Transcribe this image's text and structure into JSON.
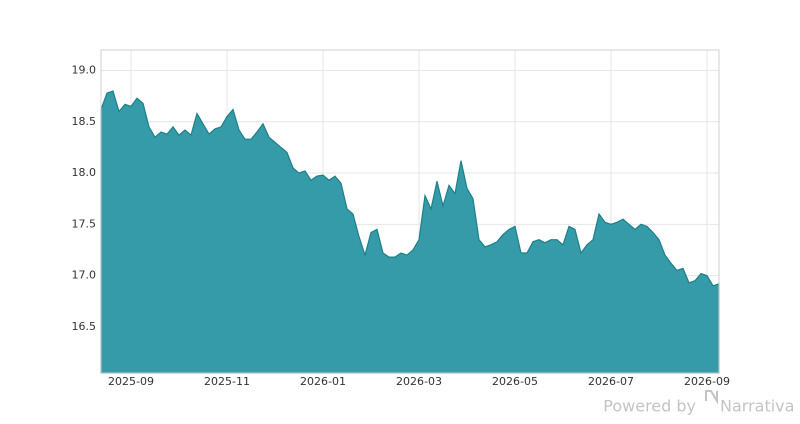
{
  "chart_data": {
    "type": "area",
    "categories": [
      null,
      null,
      null,
      null,
      null,
      "2025-09",
      null,
      null,
      null,
      null,
      null,
      null,
      null,
      null,
      null,
      null,
      null,
      null,
      null,
      null,
      null,
      "2025-11",
      null,
      null,
      null,
      null,
      null,
      null,
      null,
      null,
      null,
      null,
      null,
      null,
      null,
      null,
      null,
      "2026-01",
      null,
      null,
      null,
      null,
      null,
      null,
      null,
      null,
      null,
      null,
      null,
      null,
      null,
      null,
      null,
      "2026-03",
      null,
      null,
      null,
      null,
      null,
      null,
      null,
      null,
      null,
      null,
      null,
      null,
      null,
      null,
      null,
      "2026-05",
      null,
      null,
      null,
      null,
      null,
      null,
      null,
      null,
      null,
      null,
      null,
      null,
      null,
      null,
      null,
      "2026-07",
      null,
      null,
      null,
      null,
      null,
      null,
      null,
      null,
      null,
      null,
      null,
      null,
      null,
      null,
      null,
      "2026-09",
      null,
      null
    ],
    "values": [
      18.62,
      18.78,
      18.8,
      18.6,
      18.67,
      18.65,
      18.73,
      18.68,
      18.45,
      18.35,
      18.4,
      18.38,
      18.45,
      18.37,
      18.42,
      18.37,
      18.58,
      18.48,
      18.38,
      18.43,
      18.45,
      18.55,
      18.62,
      18.42,
      18.33,
      18.33,
      18.4,
      18.48,
      18.35,
      18.3,
      18.25,
      18.2,
      18.05,
      18.0,
      18.02,
      17.93,
      17.97,
      17.98,
      17.93,
      17.97,
      17.9,
      17.65,
      17.6,
      17.38,
      17.2,
      17.42,
      17.45,
      17.22,
      17.18,
      17.18,
      17.22,
      17.2,
      17.25,
      17.35,
      17.78,
      17.65,
      17.92,
      17.68,
      17.88,
      17.8,
      18.12,
      17.85,
      17.75,
      17.35,
      17.28,
      17.3,
      17.33,
      17.4,
      17.45,
      17.48,
      17.22,
      17.22,
      17.33,
      17.35,
      17.32,
      17.35,
      17.35,
      17.3,
      17.48,
      17.45,
      17.22,
      17.3,
      17.35,
      17.6,
      17.52,
      17.5,
      17.52,
      17.55,
      17.5,
      17.45,
      17.5,
      17.48,
      17.42,
      17.35,
      17.2,
      17.12,
      17.05,
      17.07,
      16.93,
      16.95,
      17.02,
      17.0,
      16.9,
      16.92
    ],
    "color": "#359ba8",
    "ylim": [
      16.05,
      19.2
    ],
    "yticks": [
      {
        "value": 16.5,
        "label": "16.5"
      },
      {
        "value": 17,
        "label": "17.0"
      },
      {
        "value": 17.5,
        "label": "17.5"
      },
      {
        "value": 18,
        "label": "18.0"
      },
      {
        "value": 18.5,
        "label": "18.5"
      },
      {
        "value": 19,
        "label": "19.0"
      }
    ],
    "grid": true
  },
  "footer": {
    "text": "Powered by",
    "brand": "Narrativa"
  }
}
